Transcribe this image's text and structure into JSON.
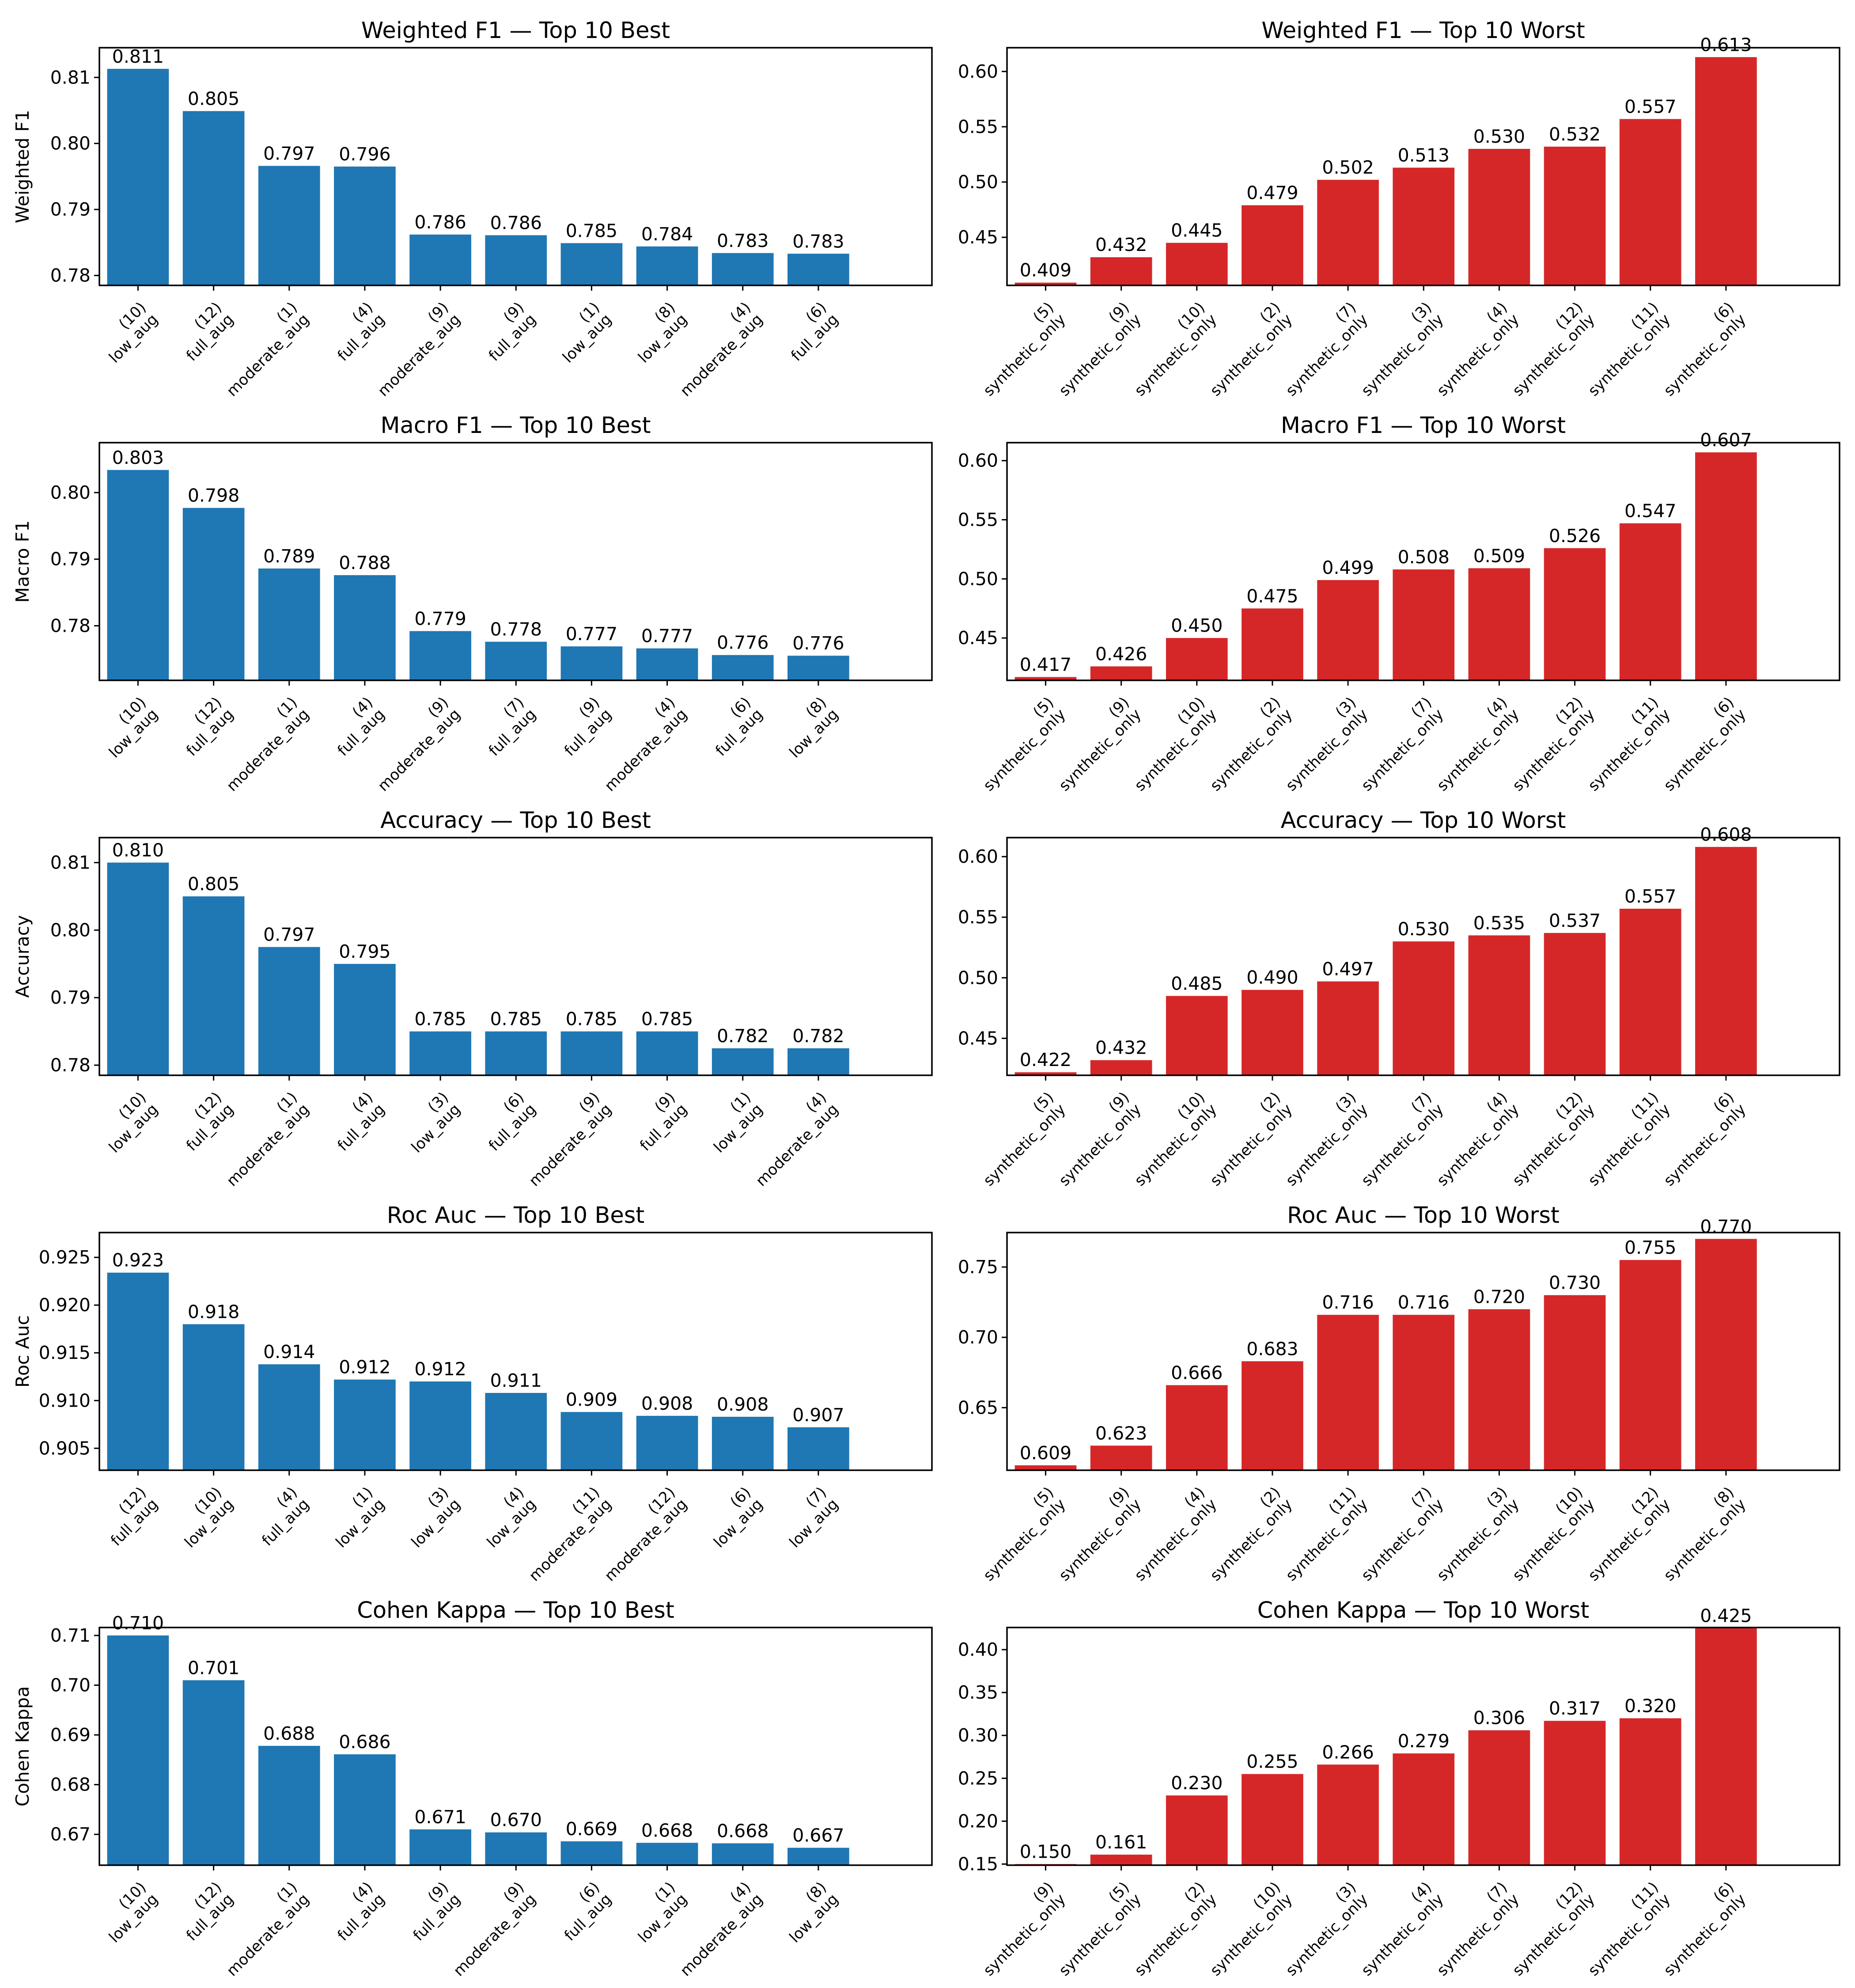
{
  "chart_data": [
    {
      "type": "bar",
      "title": "Weighted F1 — Top 10 Best",
      "ylabel": "Weighted F1",
      "color": "#1f77b4",
      "ylim": [
        0.7785,
        0.8145
      ],
      "yticks": [
        "0.78",
        "0.79",
        "0.80",
        "0.81"
      ],
      "categories": [
        "(10) low_aug",
        "(12) full_aug",
        "(1) moderate_aug",
        "(4) full_aug",
        "(9) moderate_aug",
        "(9) full_aug",
        "(1) low_aug",
        "(8) low_aug",
        "(4) moderate_aug",
        "(6) full_aug"
      ],
      "values": [
        0.8113,
        0.8049,
        0.7966,
        0.7965,
        0.7862,
        0.7861,
        0.7849,
        0.7844,
        0.7834,
        0.7833
      ],
      "labels": [
        "0.811",
        "0.805",
        "0.797",
        "0.796",
        "0.786",
        "0.786",
        "0.785",
        "0.784",
        "0.783",
        "0.783"
      ]
    },
    {
      "type": "bar",
      "title": "Weighted F1 — Top 10 Worst",
      "ylabel": "",
      "color": "#d62728",
      "ylim": [
        0.4065,
        0.6215
      ],
      "yticks": [
        "0.45",
        "0.50",
        "0.55",
        "0.60"
      ],
      "categories": [
        "(5) synthetic_only",
        "(9) synthetic_only",
        "(10) synthetic_only",
        "(2) synthetic_only",
        "(7) synthetic_only",
        "(3) synthetic_only",
        "(4) synthetic_only",
        "(12) synthetic_only",
        "(11) synthetic_only",
        "(6) synthetic_only"
      ],
      "values": [
        0.409,
        0.432,
        0.445,
        0.479,
        0.502,
        0.513,
        0.53,
        0.532,
        0.557,
        0.613
      ],
      "labels": [
        "0.409",
        "0.432",
        "0.445",
        "0.479",
        "0.502",
        "0.513",
        "0.530",
        "0.532",
        "0.557",
        "0.613"
      ]
    },
    {
      "type": "bar",
      "title": "Macro F1 — Top 10 Best",
      "ylabel": "Macro F1",
      "color": "#1f77b4",
      "ylim": [
        0.7718,
        0.8075
      ],
      "yticks": [
        "0.78",
        "0.79",
        "0.80"
      ],
      "categories": [
        "(10) low_aug",
        "(12) full_aug",
        "(1) moderate_aug",
        "(4) full_aug",
        "(9) moderate_aug",
        "(7) full_aug",
        "(9) full_aug",
        "(4) moderate_aug",
        "(6) full_aug",
        "(8) low_aug"
      ],
      "values": [
        0.8034,
        0.7977,
        0.7886,
        0.7876,
        0.7792,
        0.7776,
        0.7769,
        0.7766,
        0.7756,
        0.7755
      ],
      "labels": [
        "0.803",
        "0.798",
        "0.789",
        "0.788",
        "0.779",
        "0.778",
        "0.777",
        "0.777",
        "0.776",
        "0.776"
      ]
    },
    {
      "type": "bar",
      "title": "Macro F1 — Top 10 Worst",
      "ylabel": "",
      "color": "#d62728",
      "ylim": [
        0.4142,
        0.6152
      ],
      "yticks": [
        "0.45",
        "0.50",
        "0.55",
        "0.60"
      ],
      "categories": [
        "(5) synthetic_only",
        "(9) synthetic_only",
        "(10) synthetic_only",
        "(2) synthetic_only",
        "(3) synthetic_only",
        "(7) synthetic_only",
        "(4) synthetic_only",
        "(12) synthetic_only",
        "(11) synthetic_only",
        "(6) synthetic_only"
      ],
      "values": [
        0.417,
        0.426,
        0.45,
        0.475,
        0.499,
        0.508,
        0.509,
        0.526,
        0.547,
        0.607
      ],
      "labels": [
        "0.417",
        "0.426",
        "0.450",
        "0.475",
        "0.499",
        "0.508",
        "0.509",
        "0.526",
        "0.547",
        "0.607"
      ]
    },
    {
      "type": "bar",
      "title": "Accuracy — Top 10 Best",
      "ylabel": "Accuracy",
      "color": "#1f77b4",
      "ylim": [
        0.7785,
        0.8137
      ],
      "yticks": [
        "0.78",
        "0.79",
        "0.80",
        "0.81"
      ],
      "categories": [
        "(10) low_aug",
        "(12) full_aug",
        "(1) moderate_aug",
        "(4) full_aug",
        "(3) low_aug",
        "(6) full_aug",
        "(9) moderate_aug",
        "(9) full_aug",
        "(1) low_aug",
        "(4) moderate_aug"
      ],
      "values": [
        0.81,
        0.805,
        0.7975,
        0.795,
        0.785,
        0.785,
        0.785,
        0.785,
        0.7825,
        0.7825
      ],
      "labels": [
        "0.810",
        "0.805",
        "0.797",
        "0.795",
        "0.785",
        "0.785",
        "0.785",
        "0.785",
        "0.782",
        "0.782"
      ]
    },
    {
      "type": "bar",
      "title": "Accuracy — Top 10 Worst",
      "ylabel": "",
      "color": "#d62728",
      "ylim": [
        0.4195,
        0.6157
      ],
      "yticks": [
        "0.45",
        "0.50",
        "0.55",
        "0.60"
      ],
      "categories": [
        "(5) synthetic_only",
        "(9) synthetic_only",
        "(10) synthetic_only",
        "(2) synthetic_only",
        "(3) synthetic_only",
        "(7) synthetic_only",
        "(4) synthetic_only",
        "(12) synthetic_only",
        "(11) synthetic_only",
        "(6) synthetic_only"
      ],
      "values": [
        0.422,
        0.432,
        0.485,
        0.49,
        0.497,
        0.53,
        0.535,
        0.537,
        0.557,
        0.608
      ],
      "labels": [
        "0.422",
        "0.432",
        "0.485",
        "0.490",
        "0.497",
        "0.530",
        "0.535",
        "0.537",
        "0.557",
        "0.608"
      ]
    },
    {
      "type": "bar",
      "title": "Roc Auc — Top 10 Best",
      "ylabel": "Roc Auc",
      "color": "#1f77b4",
      "ylim": [
        0.9027,
        0.9276
      ],
      "yticks": [
        "0.905",
        "0.910",
        "0.915",
        "0.920",
        "0.925"
      ],
      "categories": [
        "(12) full_aug",
        "(10) low_aug",
        "(4) full_aug",
        "(1) low_aug",
        "(3) low_aug",
        "(4) low_aug",
        "(11) moderate_aug",
        "(12) moderate_aug",
        "(6) low_aug",
        "(7) low_aug"
      ],
      "values": [
        0.9234,
        0.918,
        0.9138,
        0.9122,
        0.912,
        0.9108,
        0.9088,
        0.9084,
        0.9083,
        0.9072
      ],
      "labels": [
        "0.923",
        "0.918",
        "0.914",
        "0.912",
        "0.912",
        "0.911",
        "0.909",
        "0.908",
        "0.908",
        "0.907"
      ]
    },
    {
      "type": "bar",
      "title": "Roc Auc — Top 10 Worst",
      "ylabel": "",
      "color": "#d62728",
      "ylim": [
        0.6055,
        0.7745
      ],
      "yticks": [
        "0.65",
        "0.70",
        "0.75"
      ],
      "categories": [
        "(5) synthetic_only",
        "(9) synthetic_only",
        "(4) synthetic_only",
        "(2) synthetic_only",
        "(11) synthetic_only",
        "(7) synthetic_only",
        "(3) synthetic_only",
        "(10) synthetic_only",
        "(12) synthetic_only",
        "(8) synthetic_only"
      ],
      "values": [
        0.609,
        0.623,
        0.666,
        0.683,
        0.716,
        0.716,
        0.72,
        0.73,
        0.755,
        0.77
      ],
      "labels": [
        "0.609",
        "0.623",
        "0.666",
        "0.683",
        "0.716",
        "0.716",
        "0.720",
        "0.730",
        "0.755",
        "0.770"
      ]
    },
    {
      "type": "bar",
      "title": "Cohen Kappa — Top 10 Best",
      "ylabel": "Cohen Kappa",
      "color": "#1f77b4",
      "ylim": [
        0.6638,
        0.7116
      ],
      "yticks": [
        "0.67",
        "0.68",
        "0.69",
        "0.70",
        "0.71"
      ],
      "categories": [
        "(10) low_aug",
        "(12) full_aug",
        "(1) moderate_aug",
        "(4) full_aug",
        "(9) full_aug",
        "(9) moderate_aug",
        "(6) full_aug",
        "(1) low_aug",
        "(4) moderate_aug",
        "(8) low_aug"
      ],
      "values": [
        0.71,
        0.701,
        0.6878,
        0.6861,
        0.671,
        0.6704,
        0.6686,
        0.6683,
        0.6682,
        0.6673
      ],
      "labels": [
        "0.710",
        "0.701",
        "0.688",
        "0.686",
        "0.671",
        "0.670",
        "0.669",
        "0.668",
        "0.668",
        "0.667"
      ]
    },
    {
      "type": "bar",
      "title": "Cohen Kappa — Top 10 Worst",
      "ylabel": "",
      "color": "#d62728",
      "ylim": [
        0.1487,
        0.4258
      ],
      "yticks": [
        "0.15",
        "0.20",
        "0.25",
        "0.30",
        "0.35",
        "0.40"
      ],
      "categories": [
        "(9) synthetic_only",
        "(5) synthetic_only",
        "(2) synthetic_only",
        "(10) synthetic_only",
        "(3) synthetic_only",
        "(4) synthetic_only",
        "(7) synthetic_only",
        "(12) synthetic_only",
        "(11) synthetic_only",
        "(6) synthetic_only"
      ],
      "values": [
        0.15,
        0.161,
        0.23,
        0.255,
        0.266,
        0.279,
        0.306,
        0.317,
        0.32,
        0.425
      ],
      "labels": [
        "0.150",
        "0.161",
        "0.230",
        "0.255",
        "0.266",
        "0.279",
        "0.306",
        "0.317",
        "0.320",
        "0.425"
      ]
    }
  ]
}
